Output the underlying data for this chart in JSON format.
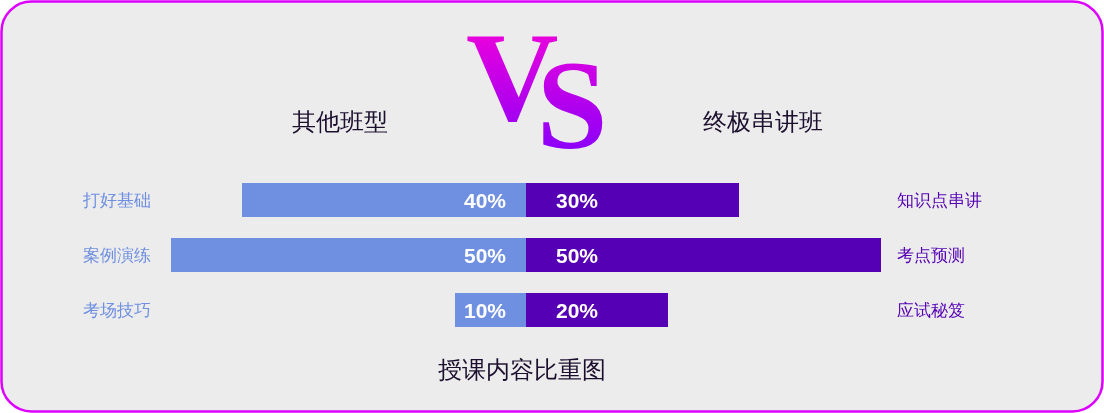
{
  "chart_data": [
    {
      "type": "bar",
      "orientation": "horizontal",
      "title": "其他班型",
      "categories": [
        "打好基础",
        "案例演练",
        "考场技巧"
      ],
      "values": [
        40,
        50,
        10
      ],
      "value_labels": [
        "40%",
        "50%",
        "10%"
      ],
      "color": "#6f8fe1",
      "xlim": [
        50,
        0
      ],
      "tick_labels": "y",
      "annotations": [
        "VS",
        "授课内容比重图"
      ]
    },
    {
      "type": "bar",
      "orientation": "horizontal",
      "title": "终极串讲班",
      "categories": [
        "知识点串讲",
        "考点预测",
        "应试秘笈"
      ],
      "values": [
        30,
        50,
        20
      ],
      "value_labels": [
        "30%",
        "50%",
        "20%"
      ],
      "color": "#5500b4",
      "xlim": [
        0,
        50
      ],
      "tick_labels": "y"
    }
  ]
}
